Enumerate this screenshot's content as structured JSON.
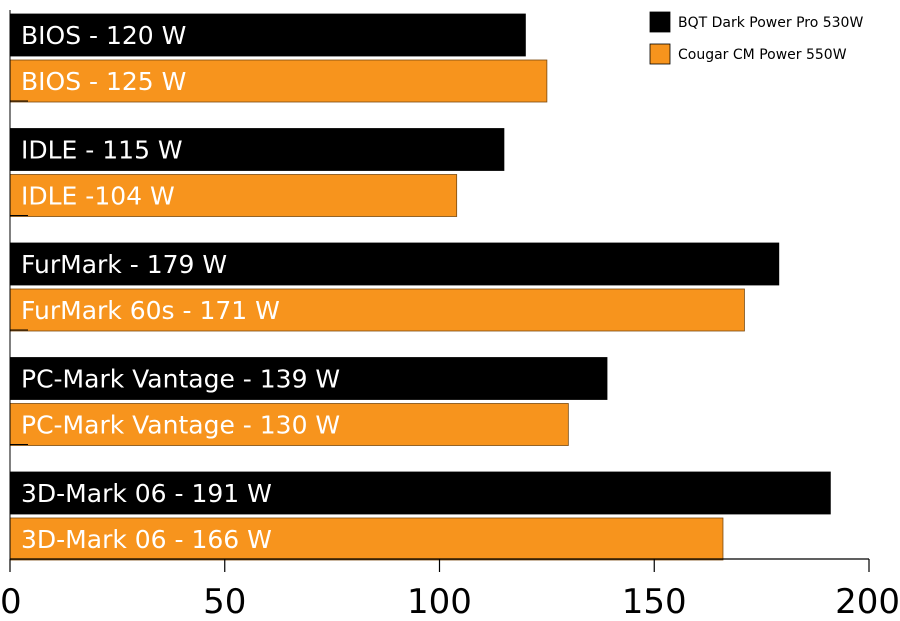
{
  "chart_data": {
    "type": "bar",
    "orientation": "horizontal",
    "title": "",
    "xlabel": "",
    "ylabel": "",
    "xlim": [
      0,
      200
    ],
    "x_ticks": [
      0,
      50,
      100,
      150,
      200
    ],
    "grid": false,
    "legend_position": "top-right",
    "categories": [
      "BIOS",
      "IDLE",
      "FurMark",
      "PC-Mark Vantage",
      "3D-Mark 06"
    ],
    "series": [
      {
        "name": "BQT Dark Power Pro 530W",
        "color": "#000000",
        "values": [
          120,
          115,
          179,
          139,
          191
        ],
        "labels": [
          "BIOS - 120 W",
          "IDLE - 115 W",
          "FurMark - 179 W",
          "PC-Mark Vantage - 139 W",
          "3D-Mark 06 - 191 W"
        ]
      },
      {
        "name": "Cougar CM Power 550W",
        "color": "#F7941D",
        "values": [
          125,
          104,
          171,
          130,
          166
        ],
        "labels": [
          "BIOS - 125 W",
          "IDLE -104 W",
          "FurMark 60s - 171 W",
          "PC-Mark Vantage - 130 W",
          "3D-Mark 06 - 166 W"
        ]
      }
    ]
  }
}
